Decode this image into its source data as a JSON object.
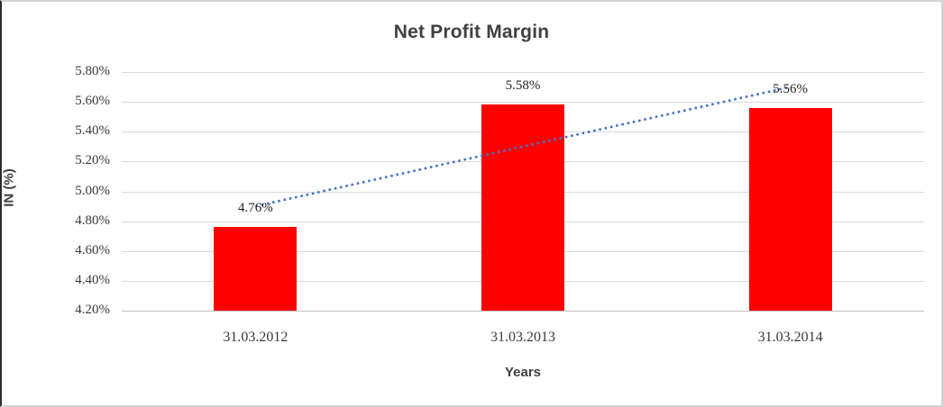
{
  "chart_data": {
    "type": "bar",
    "title": "Net Profit Margin",
    "xlabel": "Years",
    "ylabel": "IN (%)",
    "categories": [
      "31.03.2012",
      "31.03.2013",
      "31.03.2014"
    ],
    "values": [
      4.76,
      5.58,
      5.56
    ],
    "data_labels": [
      "4.76%",
      "5.58%",
      "5.56%"
    ],
    "ylim": [
      4.2,
      5.8
    ],
    "ytick_step": 0.2,
    "ytick_labels": [
      "5.80%",
      "5.60%",
      "5.40%",
      "5.20%",
      "5.00%",
      "4.80%",
      "4.60%",
      "4.40%",
      "4.20%"
    ],
    "grid": true,
    "legend": "none",
    "bar_color": "#FF0000",
    "gridline_color": "#D9D9D9",
    "axis_line_color": "#BFBFBF",
    "title_color": "#404040",
    "tick_text_color": "#3A3A3A",
    "trendline": {
      "type": "linear",
      "style": "dotted",
      "color": "#4472C4",
      "endpoints_value": [
        4.9,
        5.7
      ]
    }
  }
}
